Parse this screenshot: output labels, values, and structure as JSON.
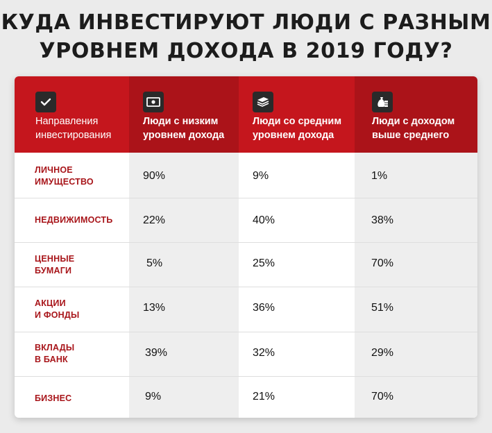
{
  "title_lines": [
    "КУДА ИНВЕСТИРУЮТ ЛЮДИ С РАЗНЫМ",
    "УРОВНЕМ ДОХОДА В 2019 ГОДУ?"
  ],
  "colors": {
    "header": "#c5161d",
    "header_dark": "#ab1319",
    "accent_text": "#a8151a",
    "stripe": "#eeeeee"
  },
  "header": {
    "category": {
      "icon": "checkmark-icon",
      "label_lines": [
        "Направления",
        "инвестирования"
      ]
    },
    "columns": [
      {
        "icon": "banknote-icon",
        "label_lines": [
          "Люди с низким",
          "уровнем дохода"
        ]
      },
      {
        "icon": "money-stack-icon",
        "label_lines": [
          "Люди со средним",
          "уровнем дохода"
        ]
      },
      {
        "icon": "money-bag-icon",
        "label_lines": [
          "Люди с доходом",
          "выше среднего"
        ]
      }
    ]
  },
  "chart_data": {
    "type": "table",
    "title": "КУДА ИНВЕСТИРУЮТ ЛЮДИ С РАЗНЫМ УРОВНЕМ ДОХОДА В 2019 ГОДУ?",
    "columns": [
      "Люди с низким уровнем дохода",
      "Люди со средним уровнем дохода",
      "Люди с доходом выше среднего"
    ],
    "rows": [
      {
        "label_lines": [
          "ЛИЧНОЕ",
          "ИМУЩЕСТВО"
        ],
        "values": [
          "90%",
          "9%",
          "1%"
        ]
      },
      {
        "label_lines": [
          "НЕДВИЖИМОСТЬ"
        ],
        "values": [
          "22%",
          "40%",
          "38%"
        ]
      },
      {
        "label_lines": [
          "ЦЕННЫЕ",
          "БУМАГИ"
        ],
        "values": [
          "5%",
          "25%",
          "70%"
        ]
      },
      {
        "label_lines": [
          "АКЦИИ",
          "И ФОНДЫ"
        ],
        "values": [
          "13%",
          "36%",
          "51%"
        ]
      },
      {
        "label_lines": [
          "ВКЛАДЫ",
          "В БАНК"
        ],
        "values": [
          "39%",
          "32%",
          "29%"
        ]
      },
      {
        "label_lines": [
          "БИЗНЕС"
        ],
        "values": [
          "9%",
          "21%",
          "70%"
        ]
      }
    ]
  }
}
